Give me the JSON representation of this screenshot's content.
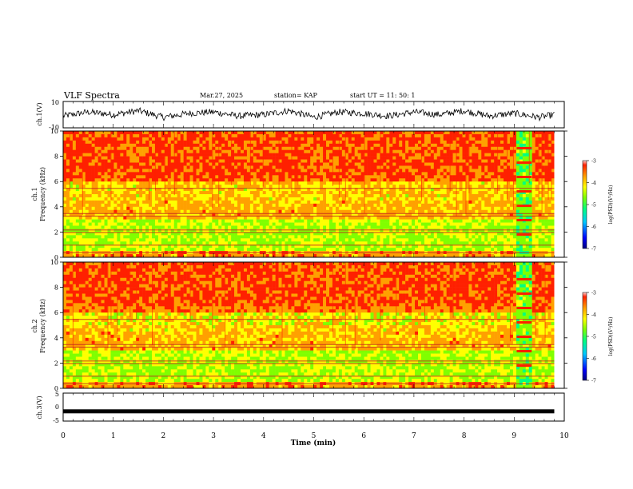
{
  "header": {
    "title": "VLF Spectra",
    "date": "Mar.27, 2025",
    "station": "station= KAP",
    "start": "start  UT =   11: 50: 1"
  },
  "colors": {
    "colormap": [
      "#000080",
      "#0000ff",
      "#00c8ff",
      "#00ff80",
      "#80ff00",
      "#ffff00",
      "#ffa000",
      "#ff2000",
      "#ffffff"
    ],
    "trace": "#000000"
  },
  "chart_data": [
    {
      "type": "line",
      "name": "ch1-waveform",
      "ylabel": "ch.1(V)",
      "ylim": [
        -10,
        10
      ],
      "yticks": [
        "10",
        "-10"
      ],
      "xlim": [
        0,
        10
      ],
      "description_values": "noisy waveform oscillating roughly between -5 and 5 V over 0-9.8 min",
      "x": [
        0,
        0.5,
        1,
        1.5,
        2,
        2.5,
        3,
        3.5,
        4,
        4.5,
        5,
        5.5,
        6,
        6.5,
        7,
        7.5,
        8,
        8.5,
        9,
        9.5,
        9.8
      ],
      "y": [
        -1,
        2,
        0,
        3,
        -2,
        1,
        2,
        -1,
        0,
        3,
        -2,
        2,
        1,
        -1,
        2,
        0,
        3,
        -1,
        1,
        -2,
        0
      ]
    },
    {
      "type": "heatmap",
      "name": "ch1-spectrogram",
      "ylabel": "ch.1\nFrequency (kHz)",
      "ylim": [
        0,
        10
      ],
      "yticks": [
        "0",
        "2",
        "4",
        "6",
        "8",
        "10"
      ],
      "xlim": [
        0,
        10
      ],
      "colorbar": {
        "label": "log(PSD)(V²/Hz)",
        "range": [
          -7,
          -3
        ],
        "ticks": [
          "-3",
          "-4",
          "-5",
          "-6",
          "-7"
        ]
      }
    },
    {
      "type": "heatmap",
      "name": "ch2-spectrogram",
      "ylabel": "ch.2\nFrequency (kHz)",
      "ylim": [
        0,
        10
      ],
      "yticks": [
        "0",
        "2",
        "4",
        "6",
        "8",
        "10"
      ],
      "xlim": [
        0,
        10
      ],
      "colorbar": {
        "label": "log(PSD)(V²/Hz)",
        "range": [
          -7,
          -3
        ],
        "ticks": [
          "-3",
          "-4",
          "-5",
          "-6",
          "-7"
        ]
      }
    },
    {
      "type": "line",
      "name": "ch3-waveform",
      "ylabel": "ch.3(V)",
      "ylim": [
        -5,
        5
      ],
      "yticks": [
        "5",
        "0",
        "-5"
      ],
      "xlim": [
        0,
        10
      ],
      "x": [
        0,
        9.8
      ],
      "y": [
        -1.5,
        -1.5
      ]
    }
  ],
  "xaxis": {
    "label": "Time (min)",
    "ticks": [
      "0",
      "1",
      "2",
      "3",
      "4",
      "5",
      "6",
      "7",
      "8",
      "9",
      "10"
    ]
  },
  "axis_labels": {
    "ch1": "ch.1(V)",
    "spec1_a": "ch.1",
    "spec1_b": "Frequency (kHz)",
    "spec2_a": "ch.2",
    "spec2_b": "Frequency (kHz)",
    "ch3": "ch.3(V)",
    "cbar": "log(PSD)(V²/Hz)"
  }
}
